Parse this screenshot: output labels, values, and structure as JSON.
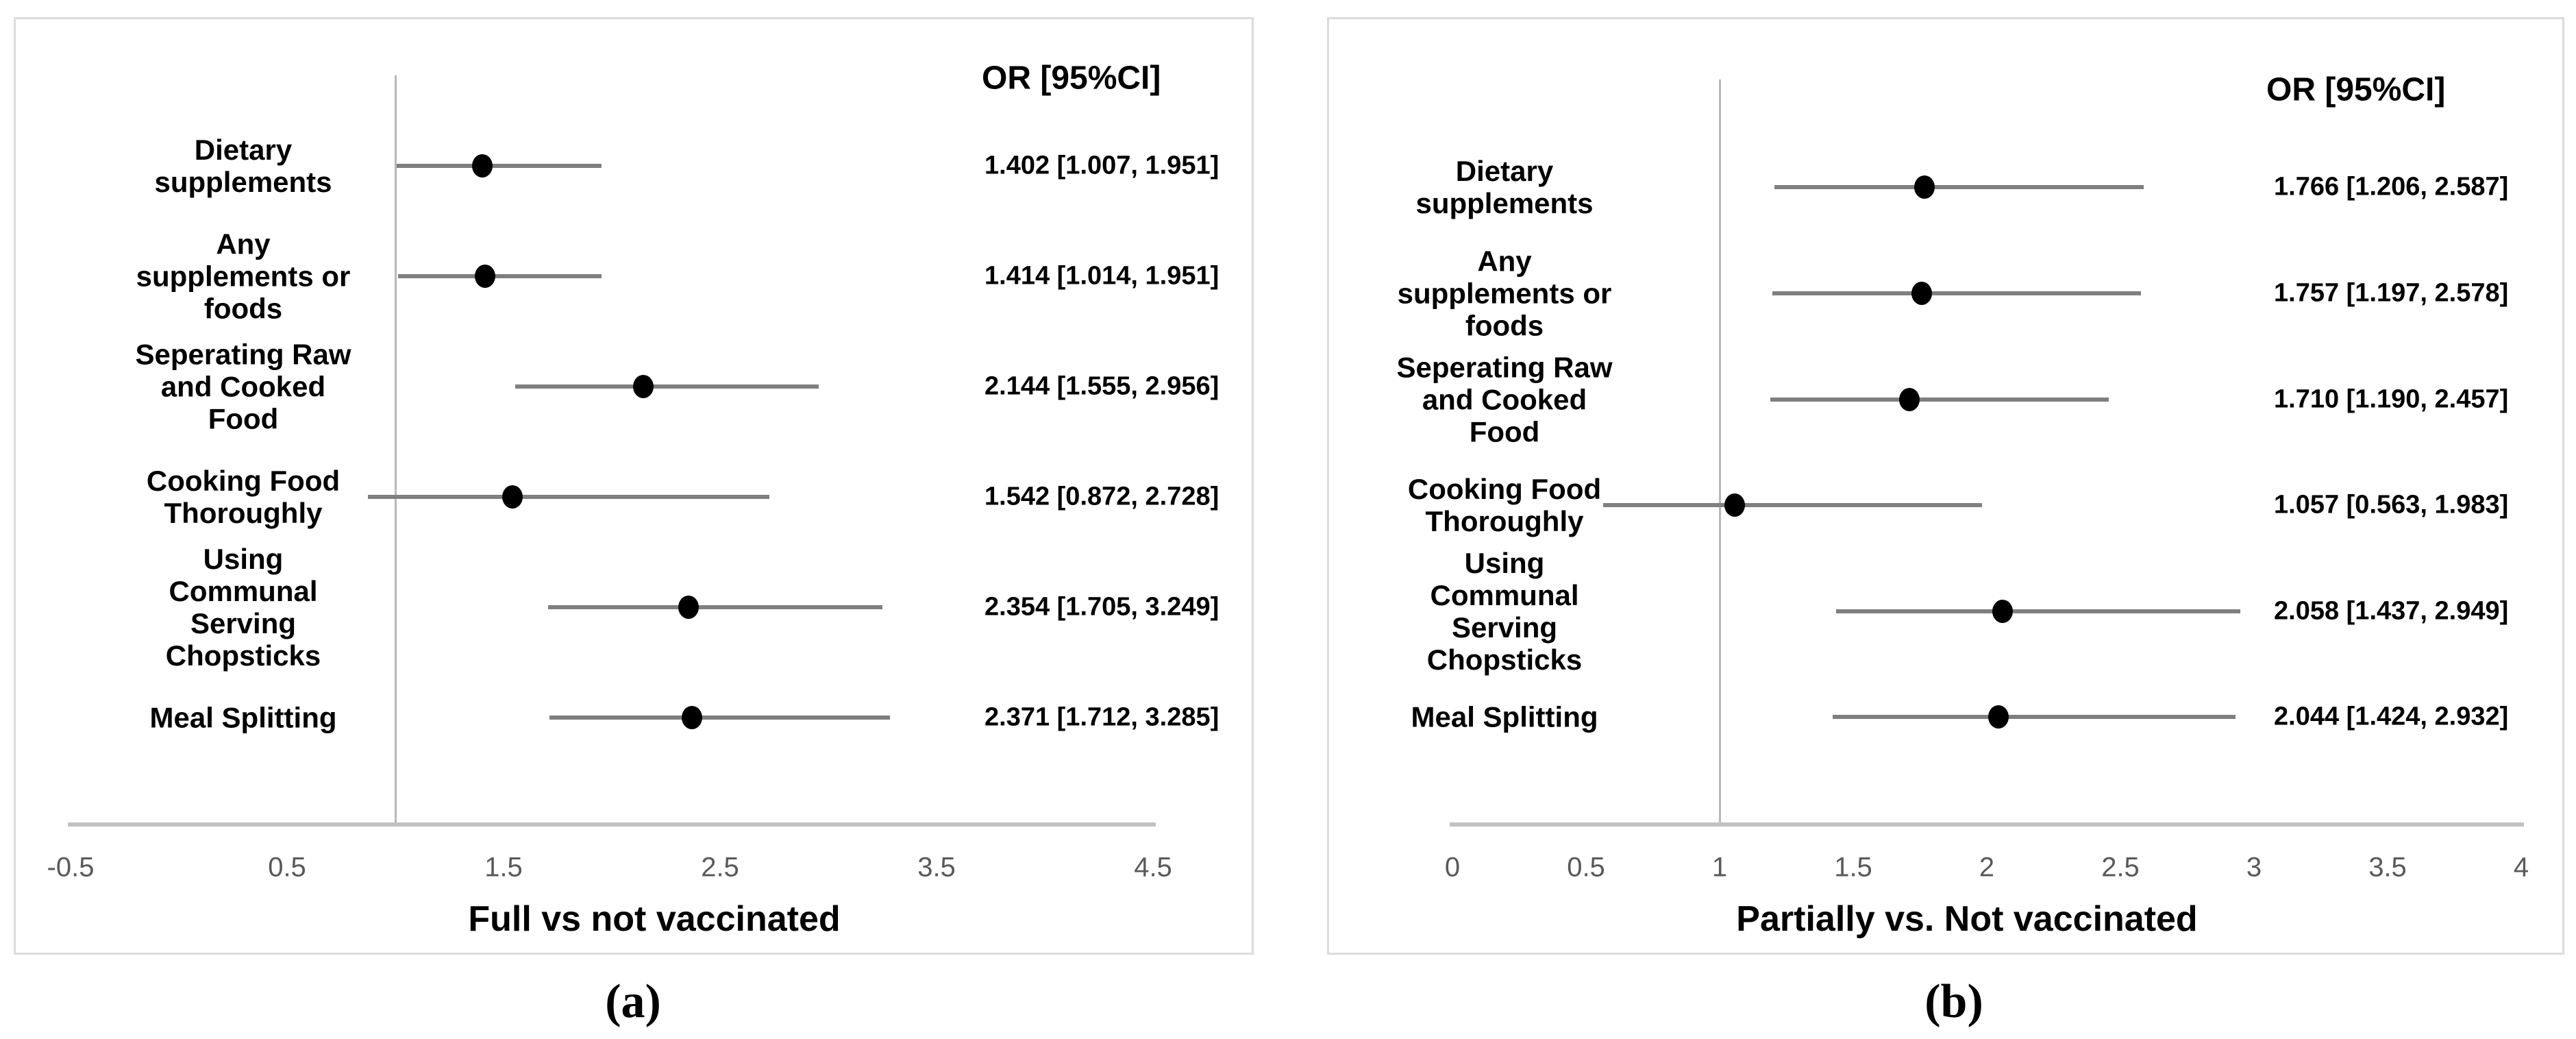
{
  "figure": {
    "description": "Two-panel forest plot of odds ratios with 95% confidence intervals"
  },
  "colors": {
    "marker": "#000000",
    "ci_line": "#7f7f7f",
    "axis_line": "#c2c2c2",
    "reference_line": "#b8b8b8",
    "tick_text": "#595959",
    "panel_border": "#dcdcdc",
    "text": "#000000"
  },
  "chart_data": [
    {
      "type": "forest",
      "panel": "a",
      "title": "OR [95%CI]",
      "xlabel": "Full vs not vaccinated",
      "caption": "(a)",
      "xlim": [
        -0.5,
        4.5
      ],
      "reference_line": 1,
      "grid": false,
      "legend": false,
      "xticks": [
        -0.5,
        0.5,
        1.5,
        2.5,
        3.5,
        4.5
      ],
      "xtick_labels": [
        "-0.5",
        "0.5",
        "1.5",
        "2.5",
        "3.5",
        "4.5"
      ],
      "rows": [
        {
          "label": "Dietary\nsupplements",
          "or": 1.402,
          "ci_low": 1.007,
          "ci_high": 1.951,
          "text": "1.402 [1.007, 1.951]"
        },
        {
          "label": "Any\nsupplements or\nfoods",
          "or": 1.414,
          "ci_low": 1.014,
          "ci_high": 1.951,
          "text": "1.414 [1.014, 1.951]"
        },
        {
          "label": "Seperating Raw\nand Cooked\nFood",
          "or": 2.144,
          "ci_low": 1.555,
          "ci_high": 2.956,
          "text": "2.144 [1.555, 2.956]"
        },
        {
          "label": "Cooking Food\nThoroughly",
          "or": 1.542,
          "ci_low": 0.872,
          "ci_high": 2.728,
          "text": "1.542 [0.872, 2.728]"
        },
        {
          "label": "Using\nCommunal\nServing\nChopsticks",
          "or": 2.354,
          "ci_low": 1.705,
          "ci_high": 3.249,
          "text": "2.354 [1.705, 3.249]"
        },
        {
          "label": "Meal Splitting",
          "or": 2.371,
          "ci_low": 1.712,
          "ci_high": 3.285,
          "text": "2.371 [1.712, 3.285]"
        }
      ]
    },
    {
      "type": "forest",
      "panel": "b",
      "title": "OR [95%CI]",
      "xlabel": "Partially vs. Not vaccinated",
      "caption": "(b)",
      "xlim": [
        0,
        4
      ],
      "reference_line": 1,
      "grid": false,
      "legend": false,
      "xticks": [
        0,
        0.5,
        1,
        1.5,
        2,
        2.5,
        3,
        3.5,
        4
      ],
      "xtick_labels": [
        "0",
        "0.5",
        "1",
        "1.5",
        "2",
        "2.5",
        "3",
        "3.5",
        "4"
      ],
      "rows": [
        {
          "label": "Dietary\nsupplements",
          "or": 1.766,
          "ci_low": 1.206,
          "ci_high": 2.587,
          "text": "1.766 [1.206, 2.587]"
        },
        {
          "label": "Any\nsupplements or\nfoods",
          "or": 1.757,
          "ci_low": 1.197,
          "ci_high": 2.578,
          "text": "1.757 [1.197, 2.578]"
        },
        {
          "label": "Seperating Raw\nand Cooked\nFood",
          "or": 1.71,
          "ci_low": 1.19,
          "ci_high": 2.457,
          "text": "1.710 [1.190, 2.457]"
        },
        {
          "label": "Cooking Food\nThoroughly",
          "or": 1.057,
          "ci_low": 0.563,
          "ci_high": 1.983,
          "text": "1.057 [0.563, 1.983]"
        },
        {
          "label": "Using\nCommunal\nServing\nChopsticks",
          "or": 2.058,
          "ci_low": 1.437,
          "ci_high": 2.949,
          "text": "2.058 [1.437, 2.949]"
        },
        {
          "label": "Meal Splitting",
          "or": 2.044,
          "ci_low": 1.424,
          "ci_high": 2.932,
          "text": "2.044 [1.424, 2.932]"
        }
      ]
    }
  ]
}
